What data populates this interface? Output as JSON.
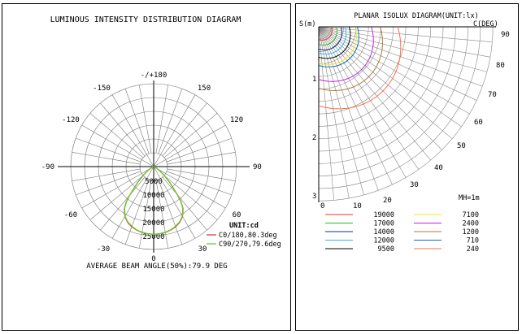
{
  "chart_data": [
    {
      "type": "polar-line",
      "title": "LUMINOUS INTENSITY DISTRIBUTION DIAGRAM",
      "unit": "UNIT:cd",
      "r_max": 30000,
      "radial_ticks": [
        "5000",
        "10000",
        "15000",
        "20000",
        "25000"
      ],
      "angle_ticks": [
        "-/+180",
        "150",
        "120",
        "90",
        "60",
        "30",
        "0",
        "-30",
        "-60",
        "-90",
        "-120",
        "-150"
      ],
      "theta_deg": [
        0,
        5,
        10,
        15,
        20,
        25,
        30,
        35,
        38,
        40,
        45,
        50,
        55,
        60,
        70,
        90
      ],
      "series": [
        {
          "name": "C0/180,80.3deg",
          "color": "#e53935",
          "values": [
            24500,
            24400,
            24200,
            23800,
            23200,
            22300,
            20900,
            18500,
            16000,
            13500,
            8500,
            5000,
            2800,
            1500,
            400,
            0
          ]
        },
        {
          "name": "C90/270,79.6deg",
          "color": "#66cc33",
          "values": [
            24500,
            24400,
            24100,
            23700,
            23000,
            22100,
            20700,
            18300,
            15800,
            13300,
            8300,
            4900,
            2700,
            1400,
            380,
            0
          ]
        }
      ],
      "footer": "AVERAGE BEAM ANGLE(50%):79.9 DEG"
    },
    {
      "type": "isolux",
      "title": "PLANAR ISOLUX DIAGRAM(UNIT:lx)",
      "y_axis_label": "S(m)",
      "x_axis_label": "C(DEG)",
      "y_ticks": [
        "1",
        "2",
        "3"
      ],
      "x_ticks": [
        "0",
        "10",
        "20",
        "30",
        "40",
        "50",
        "60",
        "70",
        "80",
        "90"
      ],
      "mounting_height": "MH=1m",
      "legend": [
        {
          "value": "19000",
          "color": "#e53935"
        },
        {
          "value": "17000",
          "color": "#22c022"
        },
        {
          "value": "14000",
          "color": "#1f2f7a"
        },
        {
          "value": "12000",
          "color": "#29b6f6"
        },
        {
          "value": "9500",
          "color": "#000000"
        },
        {
          "value": "7100",
          "color": "#f5e61a"
        },
        {
          "value": "2400",
          "color": "#c026d3"
        },
        {
          "value": "1200",
          "color": "#b07a30"
        },
        {
          "value": "710",
          "color": "#1565c0"
        },
        {
          "value": "240",
          "color": "#ff7043"
        }
      ],
      "contour_radius_m": [
        0.22,
        0.3,
        0.38,
        0.45,
        0.52,
        0.62,
        0.9,
        1.05,
        0.66,
        1.35
      ]
    }
  ]
}
